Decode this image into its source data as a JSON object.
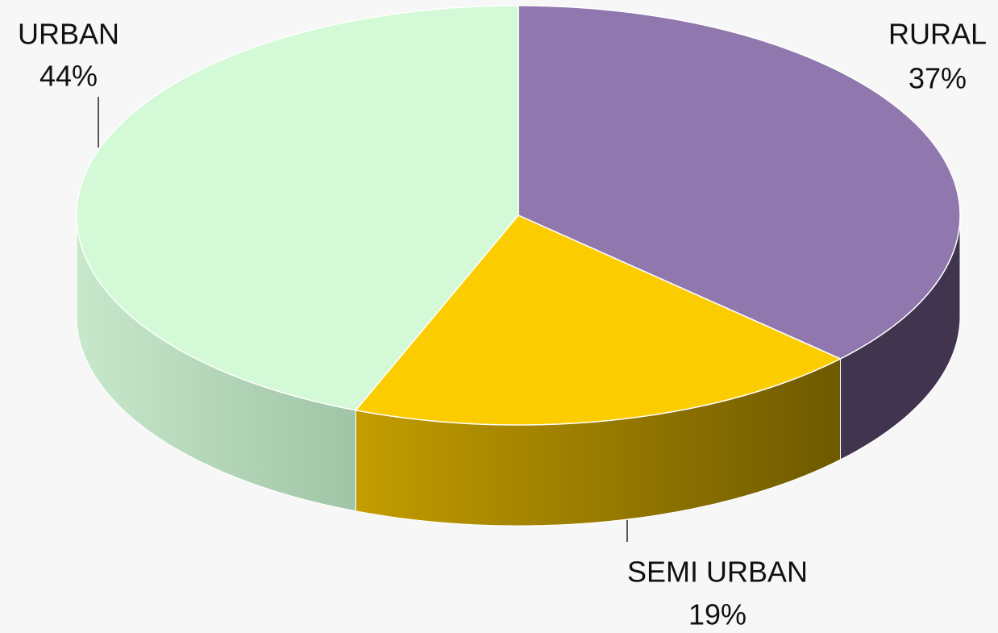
{
  "chart_data": {
    "type": "pie3d",
    "categories": [
      "RURAL",
      "SEMI URBAN",
      "URBAN"
    ],
    "values": [
      37,
      19,
      44
    ],
    "value_labels": [
      "37%",
      "19%",
      "44%"
    ],
    "colors": [
      "#9077ad",
      "#fbcd00",
      "#d3f9d6"
    ],
    "side_colors": [
      "#41344f",
      "#8a7000",
      "#b2d4b5"
    ]
  }
}
